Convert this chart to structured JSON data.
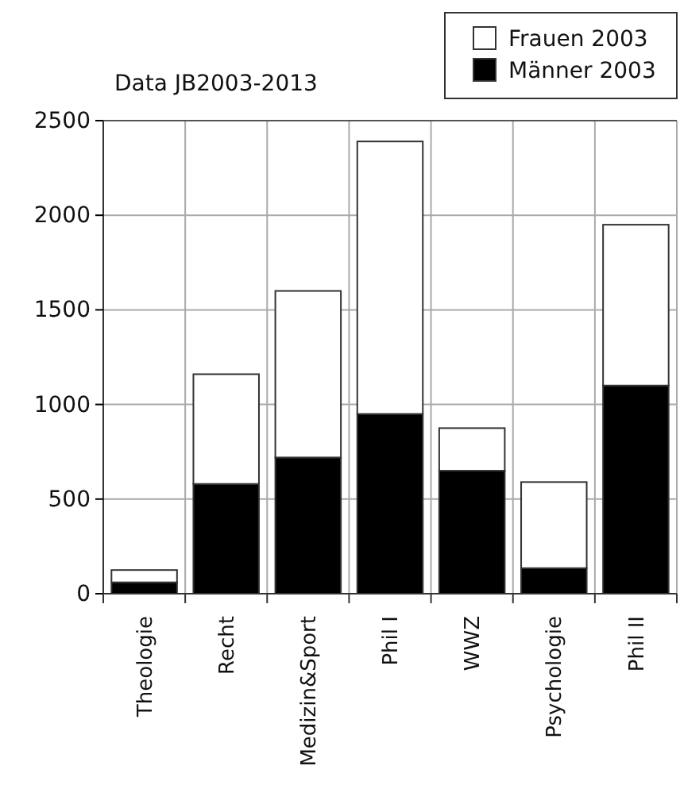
{
  "chart_data": {
    "type": "bar",
    "title": "Data JB2003-2013",
    "categories": [
      "Theologie",
      "Recht",
      "Medizin&Sport",
      "Phil I",
      "WWZ",
      "Psychologie",
      "Phil II"
    ],
    "stacked": true,
    "series": [
      {
        "name": "Männer 2003",
        "color": "#000000",
        "values": [
          60,
          580,
          720,
          950,
          650,
          135,
          1100
        ]
      },
      {
        "name": "Frauen 2003",
        "color": "#ffffff",
        "values": [
          65,
          580,
          880,
          1440,
          225,
          455,
          850
        ]
      }
    ],
    "ylim": [
      0,
      2500
    ],
    "yticks": [
      0,
      500,
      1000,
      1500,
      2000,
      2500
    ],
    "grid": true,
    "legend": "top right"
  }
}
